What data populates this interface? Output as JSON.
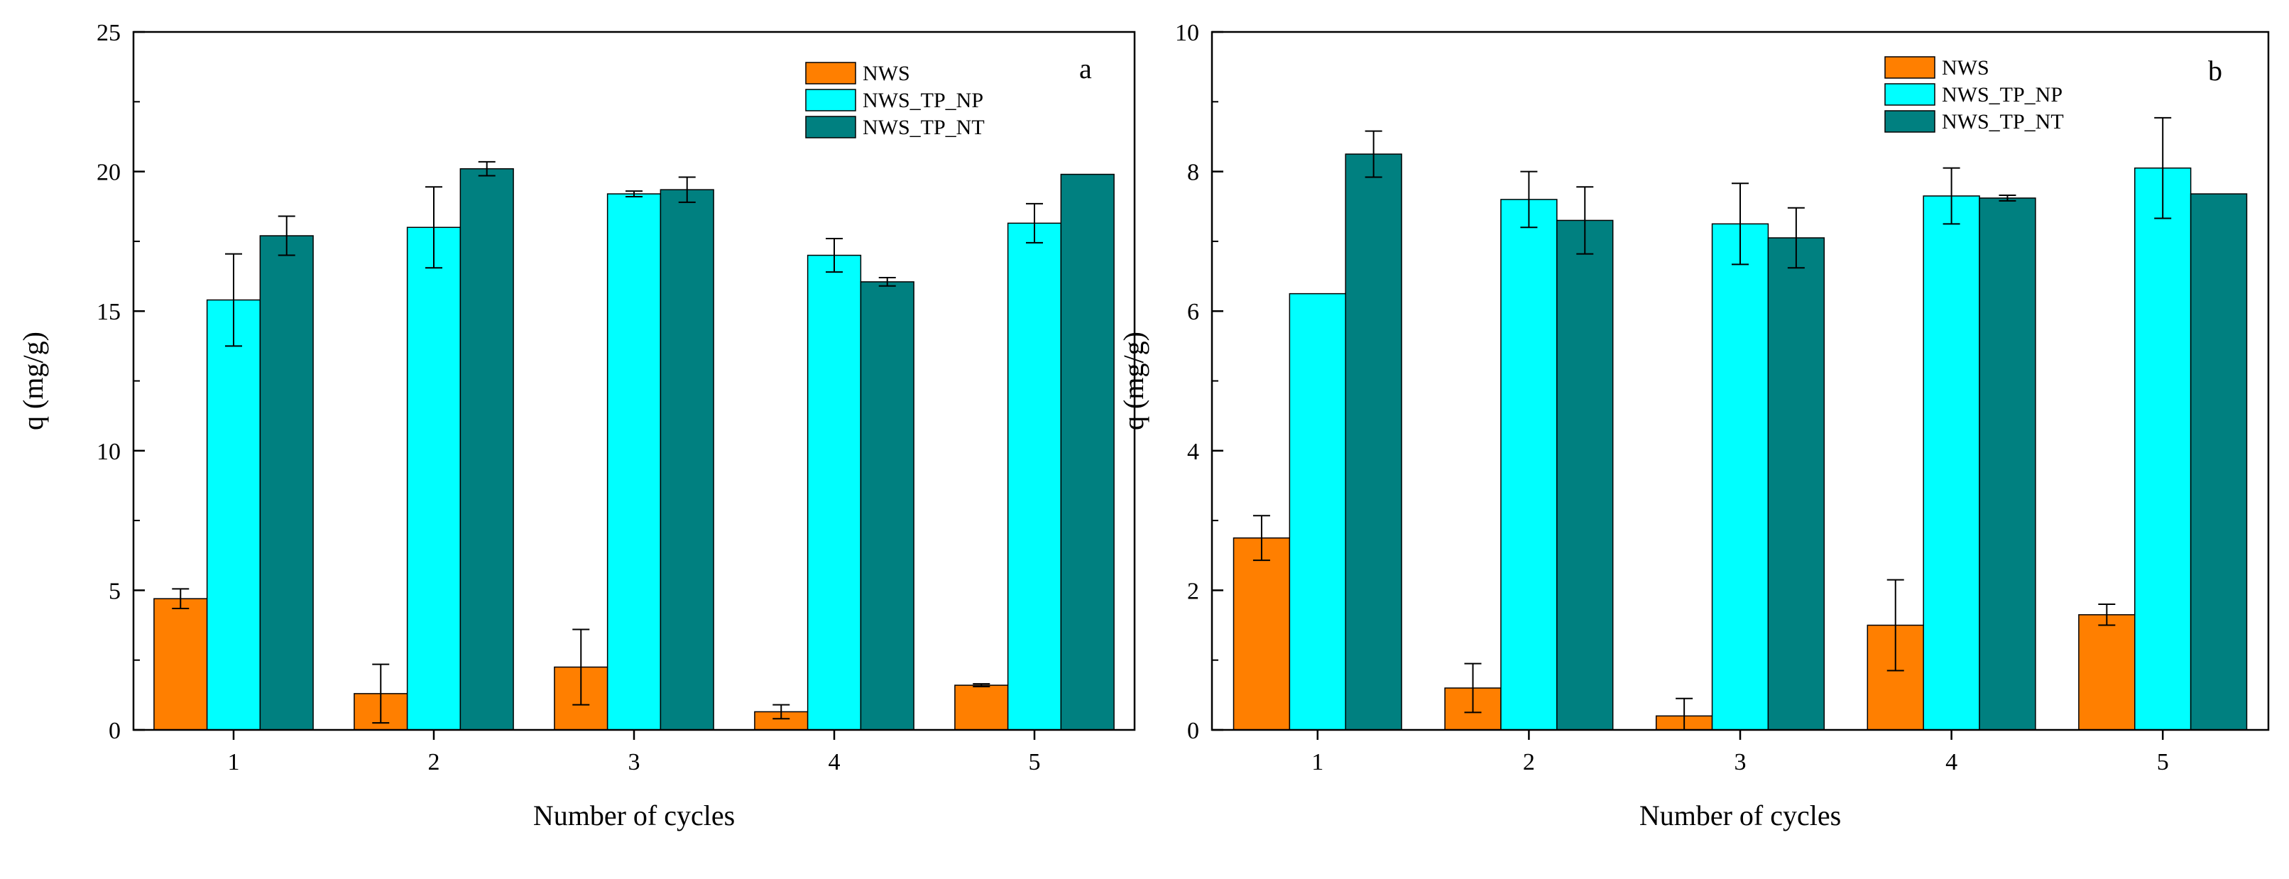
{
  "colors": {
    "NWS": "#FF7F00",
    "NWS_TP_NP": "#00FFFF",
    "NWS_TP_NT": "#008080"
  },
  "chart_data": [
    {
      "type": "bar",
      "panel_letter": "a",
      "categories": [
        "1",
        "2",
        "3",
        "4",
        "5"
      ],
      "series": [
        {
          "name": "NWS",
          "values": [
            4.7,
            1.3,
            2.25,
            0.65,
            1.6
          ],
          "errors": [
            0.35,
            1.05,
            1.35,
            0.25,
            0.05
          ]
        },
        {
          "name": "NWS_TP_NP",
          "values": [
            15.4,
            18.0,
            19.2,
            17.0,
            18.15
          ],
          "errors": [
            1.65,
            1.45,
            0.1,
            0.6,
            0.7
          ]
        },
        {
          "name": "NWS_TP_NT",
          "values": [
            17.7,
            20.1,
            19.35,
            16.05,
            19.9
          ],
          "errors": [
            0.7,
            0.25,
            0.45,
            0.15,
            0.0
          ]
        }
      ],
      "xlabel": "Number of cycles",
      "ylabel": "q (mg/g)",
      "ylim": [
        0,
        25
      ],
      "yticks": [
        "0",
        "5",
        "10",
        "15",
        "20",
        "25"
      ],
      "grid": false,
      "legend": "top-right"
    },
    {
      "type": "bar",
      "panel_letter": "b",
      "categories": [
        "1",
        "2",
        "3",
        "4",
        "5"
      ],
      "series": [
        {
          "name": "NWS",
          "values": [
            2.75,
            0.6,
            0.2,
            1.5,
            1.65
          ],
          "errors": [
            0.32,
            0.35,
            0.25,
            0.65,
            0.15
          ]
        },
        {
          "name": "NWS_TP_NP",
          "values": [
            6.25,
            7.6,
            7.25,
            7.65,
            8.05
          ],
          "errors": [
            0.0,
            0.4,
            0.58,
            0.4,
            0.72
          ]
        },
        {
          "name": "NWS_TP_NT",
          "values": [
            8.25,
            7.3,
            7.05,
            7.62,
            7.68
          ],
          "errors": [
            0.33,
            0.48,
            0.43,
            0.04,
            0.0
          ]
        }
      ],
      "xlabel": "Number of cycles",
      "ylabel": "q (mg/g)",
      "ylim": [
        0,
        10
      ],
      "yticks": [
        "0",
        "2",
        "4",
        "6",
        "8",
        "10"
      ],
      "grid": false,
      "legend": "top-right"
    }
  ]
}
